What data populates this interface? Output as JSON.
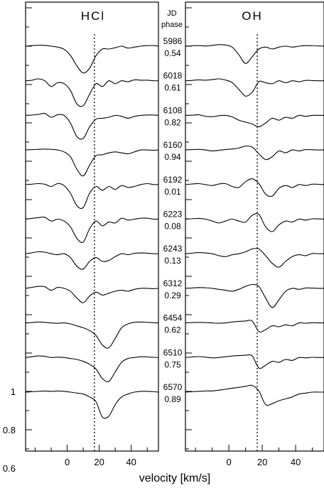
{
  "chart_data": {
    "type": "line",
    "panels": [
      {
        "title": "HCl"
      },
      {
        "title": "OH"
      }
    ],
    "header": {
      "jd": "JD",
      "phase": "phase"
    },
    "epochs": [
      {
        "jd": "5986",
        "phase": "0.54"
      },
      {
        "jd": "6018",
        "phase": "0.61"
      },
      {
        "jd": "6108",
        "phase": "0.82"
      },
      {
        "jd": "6160",
        "phase": "0.94"
      },
      {
        "jd": "6192",
        "phase": "0.01"
      },
      {
        "jd": "6223",
        "phase": "0.08"
      },
      {
        "jd": "6243",
        "phase": "0.13"
      },
      {
        "jd": "6312",
        "phase": "0.29"
      },
      {
        "jd": "6454",
        "phase": "0.62"
      },
      {
        "jd": "6510",
        "phase": "0.75"
      },
      {
        "jd": "6570",
        "phase": "0.89"
      }
    ],
    "xlabel": "velocity [km/s]",
    "xlim": [
      -26,
      57
    ],
    "x_ticks": [
      0,
      20,
      40
    ],
    "y_ticks": [
      1,
      0.8,
      0.6
    ],
    "reference_velocity": 17,
    "x": [
      -26,
      -22,
      -18,
      -14,
      -10,
      -6,
      -2,
      2,
      6,
      10,
      14,
      18,
      22,
      26,
      30,
      34,
      38,
      42,
      46,
      50,
      54,
      57
    ],
    "series": {
      "HCl": [
        [
          1.0,
          1.003,
          1.005,
          1.004,
          1.0,
          0.995,
          0.984,
          0.952,
          0.898,
          0.86,
          0.885,
          0.95,
          0.985,
          0.985,
          0.992,
          1.0,
          0.99,
          0.995,
          1.0,
          1.003,
          1.003,
          1.0
        ],
        [
          1.0,
          1.003,
          1.01,
          1.0,
          0.97,
          0.99,
          0.985,
          0.95,
          0.88,
          0.87,
          0.93,
          0.985,
          0.97,
          1.0,
          0.985,
          1.0,
          0.995,
          1.005,
          1.003,
          1.003,
          1.0,
          1.0
        ],
        [
          1.0,
          1.002,
          1.005,
          1.01,
          0.99,
          1.003,
          1.0,
          0.96,
          0.89,
          0.88,
          0.94,
          0.98,
          0.985,
          0.99,
          1.0,
          0.995,
          0.985,
          0.995,
          1.0,
          1.002,
          1.002,
          1.0
        ],
        [
          1.0,
          1.002,
          1.003,
          1.005,
          1.003,
          1.0,
          0.99,
          0.965,
          0.9,
          0.865,
          0.92,
          0.97,
          0.975,
          0.985,
          0.99,
          0.985,
          0.98,
          0.99,
          1.0,
          1.0,
          0.998,
          1.0
        ],
        [
          1.0,
          1.002,
          1.005,
          1.002,
          0.99,
          1.005,
          0.995,
          0.955,
          0.89,
          0.88,
          0.955,
          0.99,
          0.97,
          0.99,
          0.975,
          0.995,
          0.985,
          0.99,
          1.0,
          1.005,
          1.0,
          1.0
        ],
        [
          1.0,
          1.004,
          1.008,
          1.01,
          0.99,
          1.0,
          0.99,
          0.96,
          0.9,
          0.88,
          0.95,
          0.99,
          0.965,
          0.985,
          0.98,
          1.005,
          0.995,
          1.0,
          1.005,
          1.005,
          1.0,
          1.0
        ],
        [
          1.0,
          1.005,
          1.01,
          1.008,
          1.0,
          0.995,
          1.0,
          0.98,
          0.935,
          0.92,
          0.96,
          0.98,
          0.96,
          0.965,
          0.985,
          1.0,
          0.995,
          1.002,
          1.004,
          1.003,
          1.0,
          1.0
        ],
        [
          1.0,
          1.005,
          1.01,
          1.008,
          0.99,
          1.005,
          1.0,
          0.985,
          0.95,
          0.925,
          0.96,
          0.98,
          0.965,
          0.975,
          0.985,
          0.99,
          0.985,
          0.995,
          1.0,
          1.0,
          0.998,
          1.0
        ],
        [
          1.0,
          1.002,
          1.005,
          1.003,
          1.0,
          0.998,
          1.0,
          0.995,
          0.985,
          0.975,
          0.96,
          0.935,
          0.885,
          0.87,
          0.92,
          0.975,
          0.995,
          1.003,
          1.005,
          1.003,
          1.001,
          1.0
        ],
        [
          1.0,
          1.004,
          1.008,
          1.006,
          1.0,
          1.002,
          1.0,
          0.995,
          0.99,
          0.98,
          0.965,
          0.94,
          0.89,
          0.875,
          0.925,
          0.975,
          0.995,
          1.0,
          1.004,
          1.003,
          1.001,
          1.0
        ],
        [
          1.0,
          1.002,
          1.004,
          1.006,
          1.004,
          1.006,
          1.004,
          1.0,
          0.995,
          0.99,
          0.975,
          0.95,
          0.87,
          0.875,
          0.935,
          0.975,
          0.99,
          1.0,
          1.004,
          1.004,
          1.002,
          1.0
        ]
      ],
      "OH": [
        [
          1.0,
          1.002,
          1.003,
          1.001,
          1.004,
          1.008,
          1.006,
          0.995,
          0.955,
          0.91,
          0.945,
          0.985,
          0.995,
          0.985,
          0.995,
          1.0,
          0.995,
          1.0,
          1.003,
          1.002,
          1.001,
          1.0
        ],
        [
          1.0,
          1.002,
          1.005,
          1.003,
          1.006,
          1.01,
          1.004,
          0.99,
          0.955,
          0.92,
          0.94,
          0.995,
          0.99,
          0.985,
          1.0,
          0.99,
          1.0,
          0.995,
          1.002,
          1.001,
          1.0,
          1.0
        ],
        [
          1.0,
          1.001,
          1.003,
          0.995,
          0.993,
          0.998,
          1.0,
          0.992,
          0.975,
          0.965,
          0.955,
          0.94,
          0.96,
          0.985,
          0.975,
          0.99,
          0.985,
          1.0,
          0.995,
          1.0,
          1.0,
          1.0
        ],
        [
          1.0,
          1.002,
          1.003,
          1.0,
          0.995,
          0.998,
          1.002,
          1.005,
          1.01,
          1.02,
          1.015,
          0.98,
          0.95,
          0.965,
          0.995,
          0.985,
          1.0,
          0.995,
          1.002,
          1.001,
          1.0,
          1.0
        ],
        [
          1.0,
          1.003,
          1.005,
          1.0,
          0.995,
          1.003,
          1.005,
          0.99,
          0.985,
          1.015,
          1.03,
          1.005,
          0.95,
          0.94,
          0.98,
          0.995,
          0.985,
          1.0,
          0.995,
          1.002,
          1.001,
          1.0
        ],
        [
          1.0,
          1.002,
          1.004,
          1.0,
          0.99,
          0.98,
          0.99,
          1.0,
          0.99,
          0.985,
          1.02,
          1.025,
          0.96,
          0.935,
          0.97,
          0.99,
          0.985,
          1.0,
          0.995,
          1.002,
          1.001,
          1.0
        ],
        [
          1.0,
          1.003,
          1.006,
          1.004,
          1.0,
          0.99,
          0.985,
          0.995,
          1.0,
          1.01,
          1.025,
          1.025,
          0.99,
          0.95,
          0.93,
          0.96,
          0.985,
          0.995,
          0.99,
          1.001,
          1.0,
          1.0
        ],
        [
          1.0,
          1.002,
          1.004,
          1.003,
          1.0,
          0.995,
          0.99,
          0.985,
          0.995,
          1.01,
          1.02,
          1.01,
          0.95,
          0.9,
          0.94,
          0.985,
          1.0,
          0.995,
          1.002,
          1.001,
          1.0,
          1.0
        ],
        [
          1.0,
          1.002,
          1.003,
          1.002,
          1.0,
          0.998,
          1.0,
          1.005,
          1.008,
          1.01,
          1.01,
          0.955,
          0.965,
          0.985,
          0.98,
          0.99,
          0.985,
          1.0,
          0.998,
          1.001,
          1.0,
          1.0
        ],
        [
          1.0,
          1.003,
          1.005,
          1.002,
          0.998,
          1.0,
          1.004,
          1.008,
          1.01,
          1.012,
          1.008,
          0.945,
          0.96,
          0.98,
          0.975,
          0.99,
          0.985,
          1.0,
          0.998,
          1.001,
          1.0,
          1.0
        ],
        [
          1.0,
          1.002,
          1.004,
          1.006,
          1.006,
          1.01,
          1.015,
          1.02,
          1.025,
          1.03,
          1.035,
          1.005,
          0.935,
          0.94,
          0.955,
          0.965,
          0.975,
          0.99,
          0.995,
          1.0,
          1.0,
          1.0
        ]
      ]
    }
  }
}
